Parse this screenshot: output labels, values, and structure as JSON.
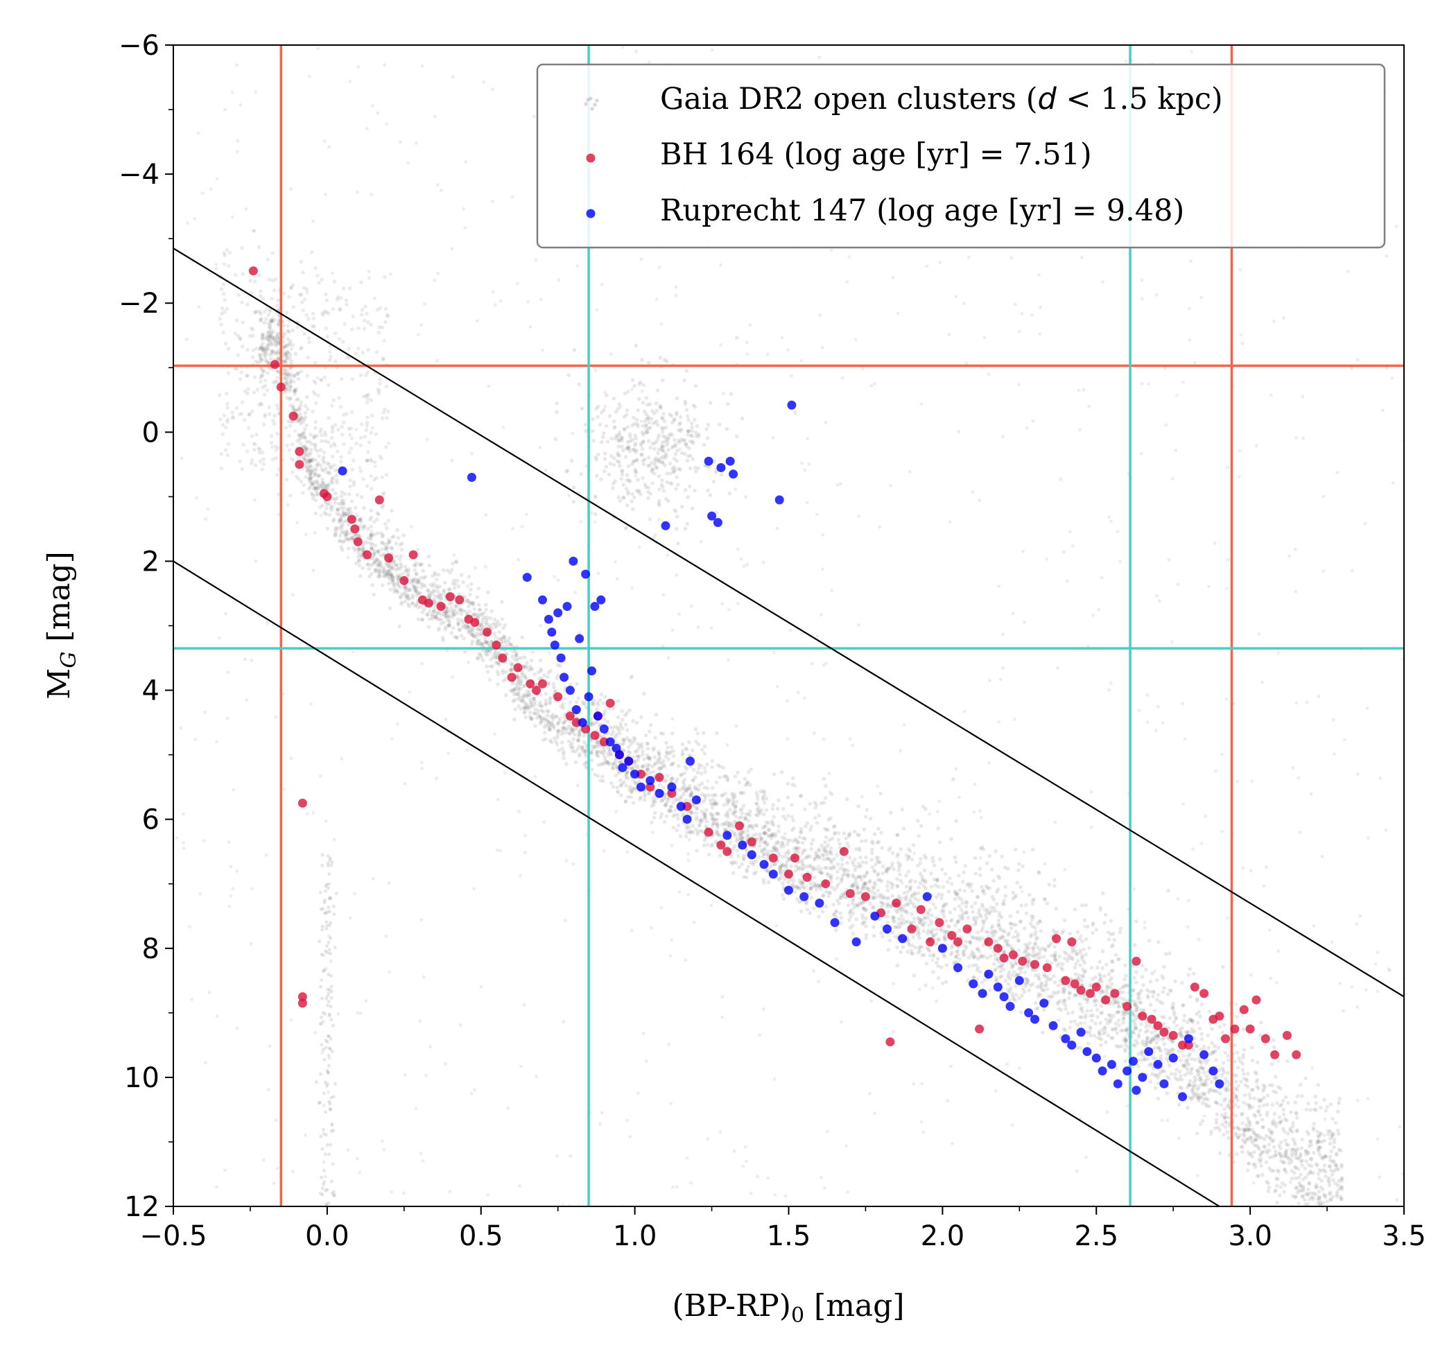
{
  "chart_data": {
    "type": "scatter",
    "xlabel": "(BP-RP)",
    "xlabel_sub": "0",
    "xlabel_unit": "  [mag]",
    "ylabel": "M",
    "ylabel_sub": "G",
    "ylabel_unit": "  [mag]",
    "xlim": [
      -0.5,
      3.5
    ],
    "ylim": [
      12,
      -6
    ],
    "y_inverted": true,
    "grid": false,
    "legend_placement": "top-right",
    "x_ticks": [
      {
        "value": -0.5,
        "label": "−0.5"
      },
      {
        "value": 0.0,
        "label": "0.0"
      },
      {
        "value": 0.5,
        "label": "0.5"
      },
      {
        "value": 1.0,
        "label": "1.0"
      },
      {
        "value": 1.5,
        "label": "1.5"
      },
      {
        "value": 2.0,
        "label": "2.0"
      },
      {
        "value": 2.5,
        "label": "2.5"
      },
      {
        "value": 3.0,
        "label": "3.0"
      },
      {
        "value": 3.5,
        "label": "3.5"
      }
    ],
    "y_ticks": [
      {
        "value": -6,
        "label": "−6"
      },
      {
        "value": -4,
        "label": "−4"
      },
      {
        "value": -2,
        "label": "−2"
      },
      {
        "value": 0,
        "label": "0"
      },
      {
        "value": 2,
        "label": "2"
      },
      {
        "value": 4,
        "label": "4"
      },
      {
        "value": 6,
        "label": "6"
      },
      {
        "value": 8,
        "label": "8"
      },
      {
        "value": 10,
        "label": "10"
      },
      {
        "value": 12,
        "label": "12"
      }
    ],
    "x_minor_step": 0.25,
    "y_minor_step": 1,
    "series": [
      {
        "name_prefix": "Gaia DR2 open clusters (",
        "name_italic": "d",
        "name_suffix": " < 1.5 kpc)",
        "color": "#808080",
        "kind": "background-density",
        "main_sequence_ridge": [
          [
            -0.15,
            -1.2
          ],
          [
            -0.05,
            0.8
          ],
          [
            0.1,
            1.8
          ],
          [
            0.3,
            2.6
          ],
          [
            0.45,
            3.0
          ],
          [
            0.55,
            3.5
          ],
          [
            0.65,
            4.2
          ],
          [
            0.8,
            4.8
          ],
          [
            1.0,
            5.4
          ],
          [
            1.3,
            6.3
          ],
          [
            1.6,
            7.0
          ],
          [
            2.0,
            7.9
          ],
          [
            2.3,
            8.5
          ],
          [
            2.6,
            9.3
          ],
          [
            2.8,
            10.0
          ],
          [
            3.0,
            11.0
          ],
          [
            3.2,
            11.8
          ]
        ],
        "giant_clump_center": [
          1.05,
          0.5
        ]
      },
      {
        "name": "BH 164 (log age [yr] = 7.51)",
        "color": "#dc143c",
        "points": [
          [
            -0.24,
            -2.5
          ],
          [
            -0.17,
            -1.05
          ],
          [
            -0.15,
            -0.7
          ],
          [
            -0.11,
            -0.25
          ],
          [
            -0.09,
            0.3
          ],
          [
            -0.09,
            0.5
          ],
          [
            -0.01,
            0.95
          ],
          [
            0.0,
            1.0
          ],
          [
            0.08,
            1.35
          ],
          [
            0.09,
            1.5
          ],
          [
            0.1,
            1.7
          ],
          [
            0.13,
            1.9
          ],
          [
            0.17,
            1.05
          ],
          [
            0.2,
            1.95
          ],
          [
            0.25,
            2.3
          ],
          [
            0.28,
            1.9
          ],
          [
            0.31,
            2.6
          ],
          [
            0.33,
            2.65
          ],
          [
            0.37,
            2.7
          ],
          [
            0.4,
            2.55
          ],
          [
            0.43,
            2.6
          ],
          [
            0.46,
            2.9
          ],
          [
            0.48,
            2.95
          ],
          [
            0.52,
            3.1
          ],
          [
            0.55,
            3.3
          ],
          [
            0.57,
            3.5
          ],
          [
            0.6,
            3.8
          ],
          [
            0.62,
            3.65
          ],
          [
            0.66,
            3.9
          ],
          [
            0.68,
            4.0
          ],
          [
            0.7,
            3.9
          ],
          [
            0.75,
            4.1
          ],
          [
            0.79,
            4.4
          ],
          [
            0.81,
            4.5
          ],
          [
            0.84,
            4.6
          ],
          [
            0.87,
            4.7
          ],
          [
            0.88,
            4.4
          ],
          [
            0.9,
            4.8
          ],
          [
            0.92,
            4.2
          ],
          [
            0.95,
            5.0
          ],
          [
            0.98,
            5.1
          ],
          [
            1.02,
            5.3
          ],
          [
            1.05,
            5.5
          ],
          [
            1.08,
            5.35
          ],
          [
            1.12,
            5.6
          ],
          [
            1.17,
            5.8
          ],
          [
            1.24,
            6.2
          ],
          [
            1.28,
            6.4
          ],
          [
            1.3,
            6.5
          ],
          [
            1.34,
            6.1
          ],
          [
            1.38,
            6.35
          ],
          [
            1.45,
            6.6
          ],
          [
            1.5,
            6.85
          ],
          [
            1.52,
            6.6
          ],
          [
            1.56,
            6.9
          ],
          [
            1.62,
            7.0
          ],
          [
            1.68,
            6.5
          ],
          [
            1.7,
            7.15
          ],
          [
            1.75,
            7.2
          ],
          [
            1.8,
            7.45
          ],
          [
            1.83,
            9.45
          ],
          [
            1.85,
            7.3
          ],
          [
            1.9,
            7.7
          ],
          [
            1.93,
            7.4
          ],
          [
            1.96,
            7.9
          ],
          [
            1.99,
            7.6
          ],
          [
            2.03,
            7.8
          ],
          [
            2.05,
            7.9
          ],
          [
            2.08,
            7.7
          ],
          [
            2.12,
            9.25
          ],
          [
            2.15,
            7.9
          ],
          [
            2.18,
            8.0
          ],
          [
            2.2,
            8.15
          ],
          [
            2.23,
            8.1
          ],
          [
            2.26,
            8.2
          ],
          [
            2.3,
            8.25
          ],
          [
            2.34,
            8.3
          ],
          [
            2.37,
            7.85
          ],
          [
            2.4,
            8.5
          ],
          [
            2.42,
            7.9
          ],
          [
            2.43,
            8.55
          ],
          [
            2.45,
            8.65
          ],
          [
            2.48,
            8.7
          ],
          [
            2.5,
            8.6
          ],
          [
            2.53,
            8.8
          ],
          [
            2.56,
            8.7
          ],
          [
            2.6,
            8.9
          ],
          [
            2.63,
            8.2
          ],
          [
            2.65,
            9.05
          ],
          [
            2.68,
            9.1
          ],
          [
            2.7,
            9.2
          ],
          [
            2.72,
            9.3
          ],
          [
            2.75,
            9.35
          ],
          [
            2.78,
            9.5
          ],
          [
            2.8,
            9.5
          ],
          [
            2.82,
            8.6
          ],
          [
            2.85,
            8.7
          ],
          [
            2.88,
            9.1
          ],
          [
            2.9,
            9.05
          ],
          [
            2.92,
            9.4
          ],
          [
            2.95,
            9.25
          ],
          [
            2.98,
            8.95
          ],
          [
            3.0,
            9.25
          ],
          [
            3.02,
            8.8
          ],
          [
            3.05,
            9.4
          ],
          [
            3.08,
            9.65
          ],
          [
            3.12,
            9.35
          ],
          [
            3.15,
            9.65
          ],
          [
            -0.08,
            5.75
          ],
          [
            -0.08,
            8.75
          ],
          [
            -0.08,
            8.85
          ]
        ]
      },
      {
        "name": "Ruprecht 147 (log age [yr] = 9.48)",
        "color": "#0000ff",
        "points": [
          [
            0.05,
            0.6
          ],
          [
            0.47,
            0.7
          ],
          [
            0.65,
            2.25
          ],
          [
            0.7,
            2.6
          ],
          [
            0.72,
            2.9
          ],
          [
            0.73,
            3.1
          ],
          [
            0.74,
            3.3
          ],
          [
            0.75,
            2.8
          ],
          [
            0.76,
            3.5
          ],
          [
            0.77,
            3.8
          ],
          [
            0.78,
            2.7
          ],
          [
            0.79,
            4.0
          ],
          [
            0.8,
            2.0
          ],
          [
            0.81,
            4.3
          ],
          [
            0.82,
            3.2
          ],
          [
            0.83,
            4.5
          ],
          [
            0.84,
            2.2
          ],
          [
            0.85,
            4.1
          ],
          [
            0.86,
            3.7
          ],
          [
            0.87,
            2.7
          ],
          [
            0.88,
            4.4
          ],
          [
            0.89,
            2.6
          ],
          [
            0.9,
            4.6
          ],
          [
            0.92,
            4.8
          ],
          [
            0.94,
            4.9
          ],
          [
            0.95,
            5.0
          ],
          [
            0.96,
            5.2
          ],
          [
            0.98,
            5.1
          ],
          [
            1.0,
            5.3
          ],
          [
            1.02,
            5.5
          ],
          [
            1.05,
            5.4
          ],
          [
            1.08,
            5.6
          ],
          [
            1.1,
            1.45
          ],
          [
            1.12,
            5.5
          ],
          [
            1.15,
            5.8
          ],
          [
            1.17,
            6.0
          ],
          [
            1.18,
            5.1
          ],
          [
            1.2,
            5.7
          ],
          [
            1.24,
            0.45
          ],
          [
            1.25,
            1.3
          ],
          [
            1.27,
            1.4
          ],
          [
            1.28,
            0.55
          ],
          [
            1.3,
            6.25
          ],
          [
            1.31,
            0.45
          ],
          [
            1.32,
            0.65
          ],
          [
            1.35,
            6.4
          ],
          [
            1.38,
            6.55
          ],
          [
            1.42,
            6.7
          ],
          [
            1.45,
            6.85
          ],
          [
            1.47,
            1.05
          ],
          [
            1.5,
            7.1
          ],
          [
            1.51,
            -0.42
          ],
          [
            1.55,
            7.2
          ],
          [
            1.6,
            7.3
          ],
          [
            1.65,
            7.6
          ],
          [
            1.72,
            7.9
          ],
          [
            1.78,
            7.5
          ],
          [
            1.82,
            7.7
          ],
          [
            1.87,
            7.85
          ],
          [
            1.95,
            7.2
          ],
          [
            2.0,
            8.0
          ],
          [
            2.05,
            8.3
          ],
          [
            2.1,
            8.55
          ],
          [
            2.13,
            8.7
          ],
          [
            2.15,
            8.4
          ],
          [
            2.18,
            8.6
          ],
          [
            2.2,
            8.75
          ],
          [
            2.22,
            8.9
          ],
          [
            2.25,
            8.5
          ],
          [
            2.28,
            9.0
          ],
          [
            2.3,
            9.1
          ],
          [
            2.33,
            8.85
          ],
          [
            2.36,
            9.2
          ],
          [
            2.4,
            9.4
          ],
          [
            2.42,
            9.5
          ],
          [
            2.45,
            9.3
          ],
          [
            2.47,
            9.6
          ],
          [
            2.5,
            9.7
          ],
          [
            2.52,
            9.9
          ],
          [
            2.55,
            9.8
          ],
          [
            2.57,
            10.1
          ],
          [
            2.6,
            9.9
          ],
          [
            2.62,
            9.75
          ],
          [
            2.63,
            10.2
          ],
          [
            2.65,
            10.0
          ],
          [
            2.67,
            9.6
          ],
          [
            2.7,
            9.8
          ],
          [
            2.72,
            10.1
          ],
          [
            2.75,
            9.7
          ],
          [
            2.78,
            10.3
          ],
          [
            2.8,
            9.4
          ],
          [
            2.85,
            9.65
          ],
          [
            2.88,
            9.9
          ],
          [
            2.9,
            10.1
          ]
        ]
      }
    ],
    "reference_lines": [
      {
        "orientation": "vertical",
        "x": -0.15,
        "color": "#f56449"
      },
      {
        "orientation": "vertical",
        "x": 2.94,
        "color": "#f56449"
      },
      {
        "orientation": "horizontal",
        "y": -1.03,
        "color": "#f56449"
      },
      {
        "orientation": "vertical",
        "x": 0.85,
        "color": "#47cfc4"
      },
      {
        "orientation": "vertical",
        "x": 2.61,
        "color": "#47cfc4"
      },
      {
        "orientation": "horizontal",
        "y": 3.35,
        "color": "#47cfc4"
      },
      {
        "orientation": "diagonal",
        "from": [
          -0.5,
          -2.85
        ],
        "to": [
          3.5,
          8.75
        ],
        "color": "#000000"
      },
      {
        "orientation": "diagonal",
        "from": [
          -0.5,
          2.0
        ],
        "to": [
          2.9,
          12.0
        ],
        "color": "#000000"
      }
    ]
  }
}
